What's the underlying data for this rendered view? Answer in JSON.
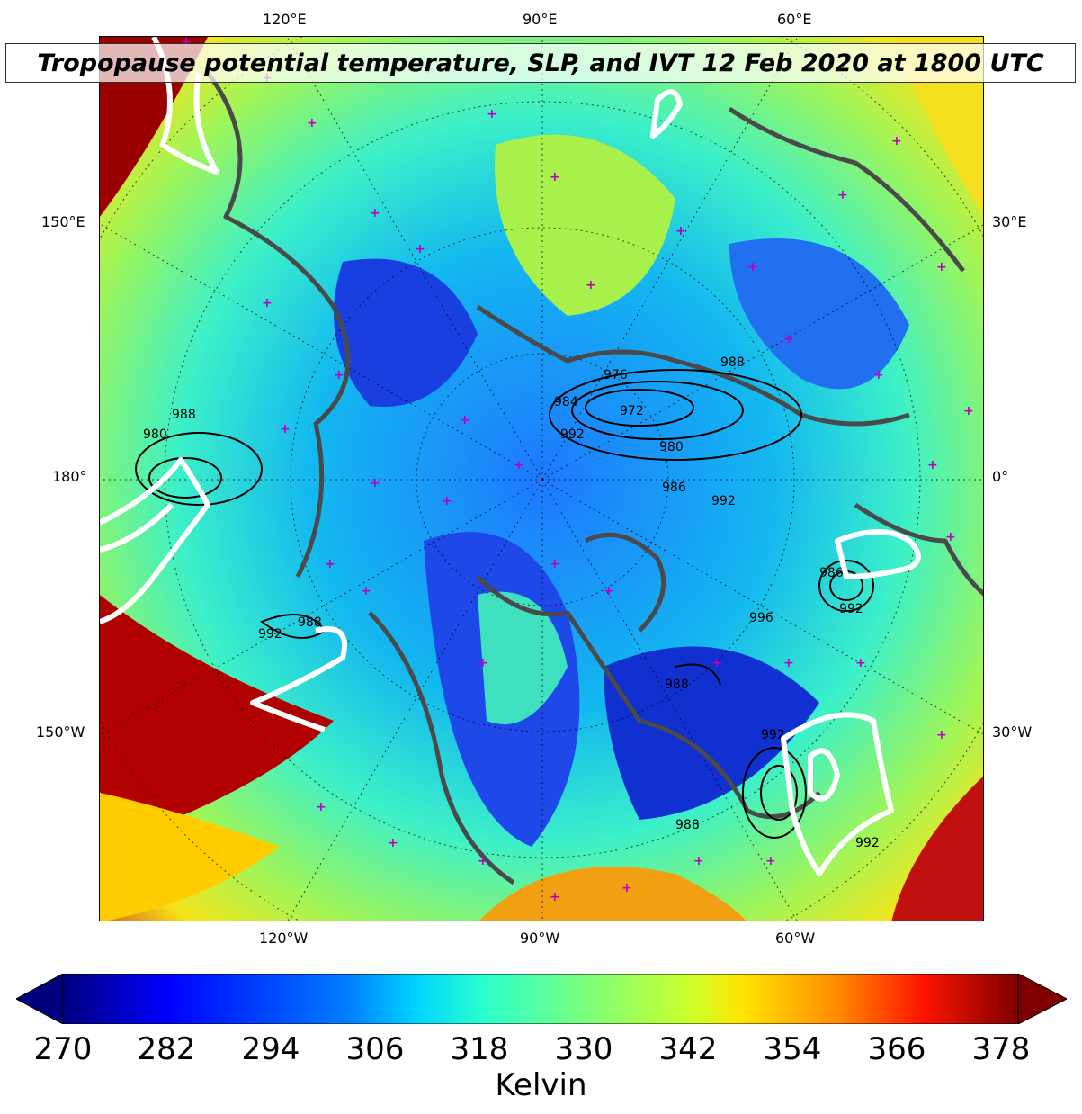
{
  "title": "Tropopause potential temperature, SLP, and IVT 12 Feb 2020 at 1800 UTC",
  "longitude_labels": {
    "top": [
      "120°E",
      "90°E",
      "60°E"
    ],
    "bottom": [
      "120°W",
      "90°W",
      "60°W"
    ],
    "left": [
      "150°E",
      "180°",
      "150°W"
    ],
    "right": [
      "30°E",
      "0°",
      "30°W"
    ]
  },
  "slp_contour_labels": [
    "988",
    "980",
    "972",
    "976",
    "984",
    "992",
    "980",
    "988",
    "986",
    "992",
    "988",
    "992",
    "986",
    "992",
    "996",
    "988",
    "992",
    "988",
    "992"
  ],
  "colorbar": {
    "unit": "Kelvin",
    "ticks": [
      "270",
      "282",
      "294",
      "306",
      "318",
      "330",
      "342",
      "354",
      "366",
      "378"
    ],
    "min": 270,
    "max": 378,
    "extend": "both",
    "colormap": "jet"
  },
  "colors": {
    "map_background": "#2bd6e8",
    "coastline": "#4a4a4a",
    "station_marker": "#c000c0",
    "ivt_contour": "#ffffff",
    "slp_contour": "#000000"
  }
}
